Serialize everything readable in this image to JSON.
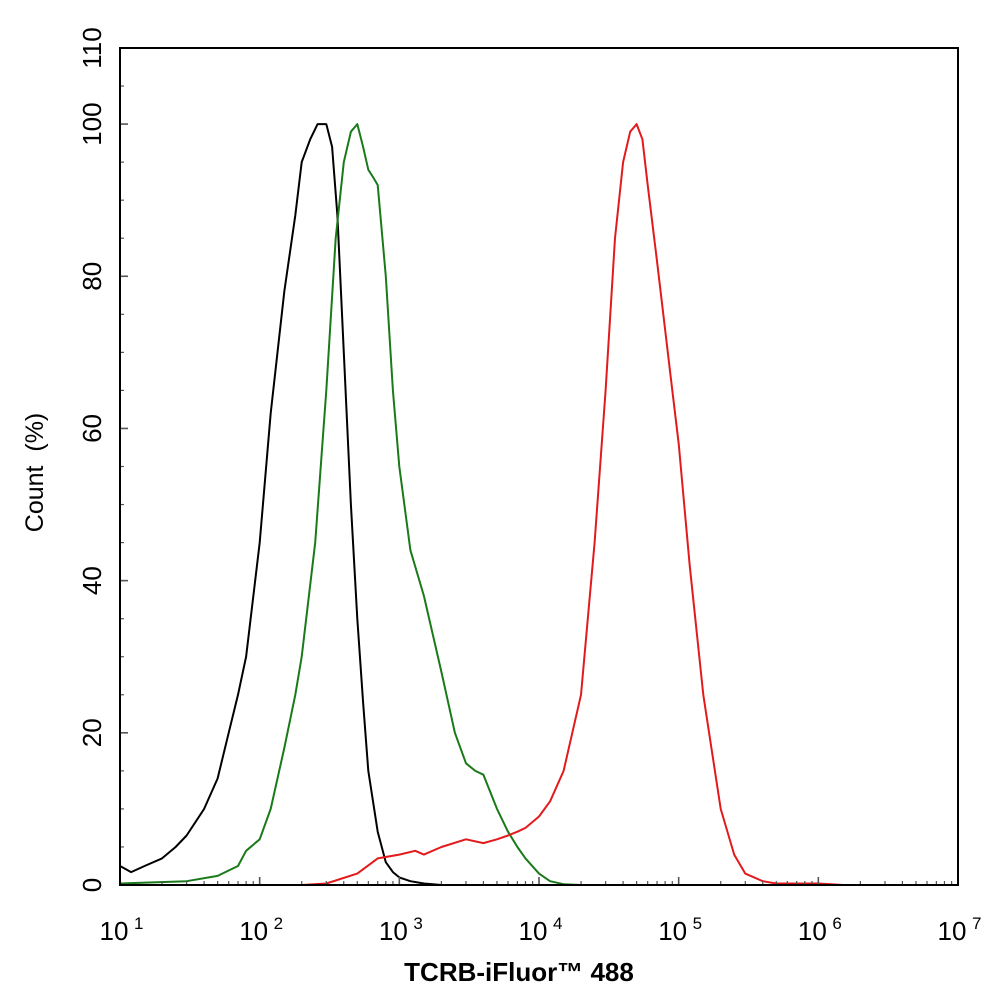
{
  "chart_data": {
    "type": "line",
    "title": "",
    "xlabel": "TCRB-iFluor™ 488",
    "ylabel": "Count  (%)",
    "xscale": "log",
    "xlim": [
      10,
      10000000
    ],
    "ylim": [
      0,
      110
    ],
    "grid": false,
    "legend": "none",
    "x_tick_labels": [
      {
        "base": "10",
        "exp": "1"
      },
      {
        "base": "10",
        "exp": "2"
      },
      {
        "base": "10",
        "exp": "3"
      },
      {
        "base": "10",
        "exp": "4"
      },
      {
        "base": "10",
        "exp": "5"
      },
      {
        "base": "10",
        "exp": "6"
      },
      {
        "base": "10",
        "exp": "7"
      }
    ],
    "y_tick_labels": [
      "0",
      "20",
      "40",
      "60",
      "80",
      "100",
      "110"
    ],
    "series": [
      {
        "color": "#000000",
        "x": [
          10,
          12,
          15,
          20,
          25,
          30,
          40,
          50,
          60,
          70,
          80,
          100,
          120,
          150,
          180,
          200,
          230,
          260,
          300,
          330,
          360,
          400,
          450,
          500,
          550,
          600,
          700,
          800,
          900,
          1000,
          1200,
          1500,
          2000
        ],
        "y": [
          2.5,
          1.7,
          2.5,
          3.5,
          5.0,
          6.5,
          10.0,
          14.0,
          20.0,
          25.0,
          30.0,
          45.0,
          62.0,
          78.0,
          88.0,
          95.0,
          98.0,
          100.0,
          100.0,
          97.0,
          88.0,
          70.0,
          50.0,
          35.0,
          24.0,
          15.0,
          7.0,
          3.0,
          1.7,
          1.0,
          0.5,
          0.2,
          0.0
        ]
      },
      {
        "color": "#1a7a1a",
        "x": [
          10,
          30,
          50,
          70,
          80,
          100,
          120,
          150,
          180,
          200,
          250,
          300,
          350,
          400,
          450,
          500,
          550,
          600,
          650,
          700,
          800,
          900,
          1000,
          1200,
          1500,
          2000,
          2500,
          3000,
          3500,
          4000,
          5000,
          6000,
          7000,
          8000,
          10000,
          12000,
          15000,
          20000
        ],
        "y": [
          0.2,
          0.5,
          1.2,
          2.5,
          4.5,
          6.0,
          10.0,
          18.0,
          25.0,
          30.0,
          45.0,
          65.0,
          85.0,
          95.0,
          99.0,
          100.0,
          97.0,
          94.0,
          93.0,
          92.0,
          80.0,
          65.0,
          55.0,
          44.0,
          38.0,
          28.0,
          20.0,
          16.0,
          15.0,
          14.5,
          10.0,
          7.0,
          5.0,
          3.5,
          1.5,
          0.5,
          0.1,
          0.0
        ]
      },
      {
        "color": "#e31a1c",
        "x": [
          200,
          300,
          500,
          700,
          1000,
          1300,
          1500,
          2000,
          3000,
          4000,
          5000,
          6000,
          7000,
          8000,
          10000,
          12000,
          15000,
          20000,
          25000,
          30000,
          35000,
          40000,
          45000,
          50000,
          55000,
          60000,
          70000,
          80000,
          90000,
          100000,
          120000,
          150000,
          200000,
          250000,
          300000,
          400000,
          500000,
          700000,
          1000000,
          1500000
        ],
        "y": [
          0.0,
          0.2,
          1.5,
          3.5,
          4.0,
          4.5,
          4.0,
          5.0,
          6.0,
          5.5,
          6.0,
          6.5,
          7.0,
          7.5,
          9.0,
          11.0,
          15.0,
          25.0,
          45.0,
          65.0,
          85.0,
          95.0,
          99.0,
          100.0,
          98.0,
          92.0,
          82.0,
          73.0,
          65.0,
          58.0,
          42.0,
          25.0,
          10.0,
          4.0,
          1.5,
          0.5,
          0.2,
          0.2,
          0.2,
          0.0
        ]
      }
    ]
  }
}
